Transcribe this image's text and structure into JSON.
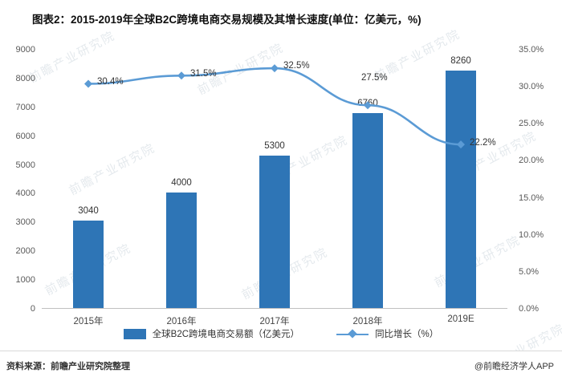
{
  "title": "图表2：2015-2019年全球B2C跨境电商交易规模及其增长速度(单位：亿美元，%)",
  "chart_data": {
    "type": "bar+line",
    "title": "图表2：2015-2019年全球B2C跨境电商交易规模及其增长速度(单位：亿美元，%)",
    "categories": [
      "2015年",
      "2016年",
      "2017年",
      "2018年",
      "2019E"
    ],
    "series": [
      {
        "name": "全球B2C跨境电商交易额（亿美元）",
        "type": "bar",
        "axis": "left",
        "values": [
          3040,
          4000,
          5300,
          6760,
          8260
        ],
        "color": "#2E75B6"
      },
      {
        "name": "同比增长（%）",
        "type": "line",
        "axis": "right",
        "values": [
          30.4,
          31.5,
          32.5,
          27.5,
          22.2
        ],
        "labels": [
          "30.4%",
          "31.5%",
          "32.5%",
          "27.5%",
          "22.2%"
        ],
        "label_offsets": [
          [
            11,
            -8
          ],
          [
            11,
            -8
          ],
          [
            11,
            -9
          ],
          [
            -8,
            -40
          ],
          [
            11,
            -8
          ]
        ],
        "color": "#5B9BD5"
      }
    ],
    "left_axis": {
      "min": 0,
      "max": 9000,
      "step": 1000,
      "ticks": [
        "9000",
        "8000",
        "7000",
        "6000",
        "5000",
        "4000",
        "3000",
        "2000",
        "1000",
        "0"
      ]
    },
    "right_axis": {
      "min": 0,
      "max": 35,
      "step": 5,
      "ticks": [
        "35.0%",
        "30.0%",
        "25.0%",
        "20.0%",
        "15.0%",
        "10.0%",
        "5.0%",
        "0.0%"
      ]
    },
    "grid": false,
    "legend_position": "bottom"
  },
  "watermark": {
    "text": "前瞻产业研究院"
  },
  "footer": {
    "source": "资料来源：前瞻产业研究院整理",
    "credit": "@前瞻经济学人APP"
  }
}
